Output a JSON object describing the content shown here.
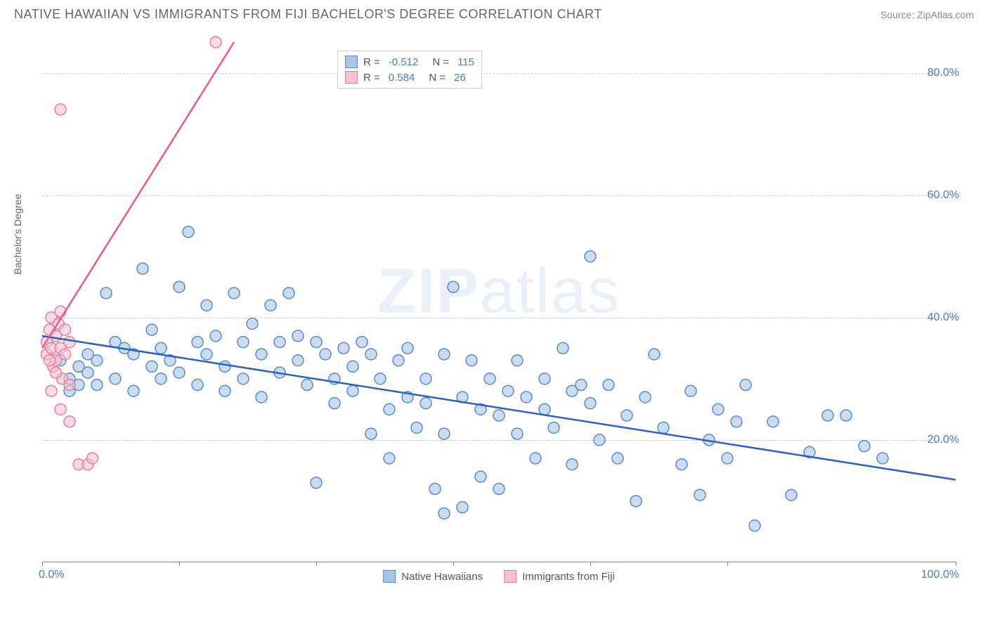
{
  "header": {
    "title": "NATIVE HAWAIIAN VS IMMIGRANTS FROM FIJI BACHELOR'S DEGREE CORRELATION CHART",
    "source": "Source: ZipAtlas.com"
  },
  "watermark": {
    "zip": "ZIP",
    "atlas": "atlas"
  },
  "chart": {
    "type": "scatter",
    "y_axis_title": "Bachelor's Degree",
    "xlim": [
      0,
      100
    ],
    "ylim": [
      0,
      85
    ],
    "x_ticks": [
      0,
      15,
      30,
      45,
      60,
      75,
      100
    ],
    "x_tick_labels": {
      "0": "0.0%",
      "100": "100.0%"
    },
    "y_grid": [
      20,
      40,
      60,
      80
    ],
    "y_labels": {
      "20": "20.0%",
      "40": "40.0%",
      "60": "60.0%",
      "80": "80.0%"
    },
    "background_color": "#ffffff",
    "grid_color": "#cccccc",
    "axis_label_color": "#4a7bc8",
    "axis_title_color": "#666666",
    "marker_radius": 8,
    "marker_stroke_width": 1.5,
    "line_width": 2.5,
    "series": {
      "hawaiian": {
        "label": "Native Hawaiians",
        "fill_color": "#a8c5e8",
        "stroke_color": "#5a8bc4",
        "line_color": "#2962c4",
        "r_value": "-0.512",
        "n_value": "115",
        "trend": {
          "x1": 0,
          "y1": 37,
          "x2": 100,
          "y2": 13.5
        },
        "points": [
          [
            2,
            33
          ],
          [
            3,
            30
          ],
          [
            3,
            28
          ],
          [
            4,
            32
          ],
          [
            4,
            29
          ],
          [
            5,
            31
          ],
          [
            5,
            34
          ],
          [
            6,
            33
          ],
          [
            6,
            29
          ],
          [
            7,
            44
          ],
          [
            8,
            36
          ],
          [
            8,
            30
          ],
          [
            9,
            35
          ],
          [
            10,
            34
          ],
          [
            10,
            28
          ],
          [
            11,
            48
          ],
          [
            12,
            32
          ],
          [
            12,
            38
          ],
          [
            13,
            30
          ],
          [
            13,
            35
          ],
          [
            14,
            33
          ],
          [
            15,
            45
          ],
          [
            15,
            31
          ],
          [
            16,
            54
          ],
          [
            17,
            36
          ],
          [
            17,
            29
          ],
          [
            18,
            42
          ],
          [
            18,
            34
          ],
          [
            19,
            37
          ],
          [
            20,
            32
          ],
          [
            20,
            28
          ],
          [
            21,
            44
          ],
          [
            22,
            36
          ],
          [
            22,
            30
          ],
          [
            23,
            39
          ],
          [
            24,
            34
          ],
          [
            24,
            27
          ],
          [
            25,
            42
          ],
          [
            26,
            36
          ],
          [
            26,
            31
          ],
          [
            27,
            44
          ],
          [
            28,
            33
          ],
          [
            28,
            37
          ],
          [
            29,
            29
          ],
          [
            30,
            36
          ],
          [
            30,
            13
          ],
          [
            31,
            34
          ],
          [
            32,
            30
          ],
          [
            32,
            26
          ],
          [
            33,
            35
          ],
          [
            34,
            28
          ],
          [
            34,
            32
          ],
          [
            35,
            36
          ],
          [
            36,
            34
          ],
          [
            36,
            21
          ],
          [
            37,
            30
          ],
          [
            38,
            25
          ],
          [
            38,
            17
          ],
          [
            39,
            33
          ],
          [
            40,
            35
          ],
          [
            40,
            27
          ],
          [
            41,
            22
          ],
          [
            42,
            30
          ],
          [
            42,
            26
          ],
          [
            43,
            12
          ],
          [
            44,
            21
          ],
          [
            44,
            34
          ],
          [
            45,
            45
          ],
          [
            46,
            27
          ],
          [
            46,
            9
          ],
          [
            47,
            33
          ],
          [
            48,
            14
          ],
          [
            48,
            25
          ],
          [
            49,
            30
          ],
          [
            50,
            24
          ],
          [
            50,
            12
          ],
          [
            51,
            28
          ],
          [
            52,
            21
          ],
          [
            52,
            33
          ],
          [
            53,
            27
          ],
          [
            54,
            17
          ],
          [
            55,
            25
          ],
          [
            55,
            30
          ],
          [
            56,
            22
          ],
          [
            57,
            35
          ],
          [
            58,
            28
          ],
          [
            58,
            16
          ],
          [
            60,
            50
          ],
          [
            60,
            26
          ],
          [
            61,
            20
          ],
          [
            62,
            29
          ],
          [
            63,
            17
          ],
          [
            64,
            24
          ],
          [
            65,
            10
          ],
          [
            66,
            27
          ],
          [
            67,
            34
          ],
          [
            68,
            22
          ],
          [
            70,
            16
          ],
          [
            71,
            28
          ],
          [
            72,
            11
          ],
          [
            73,
            20
          ],
          [
            74,
            25
          ],
          [
            75,
            17
          ],
          [
            76,
            23
          ],
          [
            77,
            29
          ],
          [
            78,
            6
          ],
          [
            80,
            23
          ],
          [
            82,
            11
          ],
          [
            84,
            18
          ],
          [
            86,
            24
          ],
          [
            88,
            24
          ],
          [
            90,
            19
          ],
          [
            92,
            17
          ],
          [
            59,
            29
          ],
          [
            44,
            8
          ]
        ]
      },
      "fiji": {
        "label": "Immigrants from Fiji",
        "fill_color": "#f5c2d0",
        "stroke_color": "#e87ca0",
        "line_color": "#e85a8a",
        "r_value": "0.584",
        "n_value": "26",
        "trend": {
          "x1": 0,
          "y1": 35,
          "x2": 21,
          "y2": 85
        },
        "points": [
          [
            0.5,
            34
          ],
          [
            0.5,
            36
          ],
          [
            0.8,
            38
          ],
          [
            1,
            40
          ],
          [
            1,
            35
          ],
          [
            1.2,
            32
          ],
          [
            1.5,
            33
          ],
          [
            1.5,
            37
          ],
          [
            1.8,
            39
          ],
          [
            2,
            35
          ],
          [
            2,
            41
          ],
          [
            2.2,
            30
          ],
          [
            2.5,
            34
          ],
          [
            2.5,
            38
          ],
          [
            3,
            29
          ],
          [
            3,
            36
          ],
          [
            1,
            28
          ],
          [
            2,
            25
          ],
          [
            3,
            23
          ],
          [
            4,
            16
          ],
          [
            5,
            16
          ],
          [
            5.5,
            17
          ],
          [
            2,
            74
          ],
          [
            19,
            85
          ],
          [
            1.5,
            31
          ],
          [
            0.8,
            33
          ]
        ]
      }
    }
  },
  "legend_top": {
    "r_label": "R =",
    "n_label": "N ="
  }
}
